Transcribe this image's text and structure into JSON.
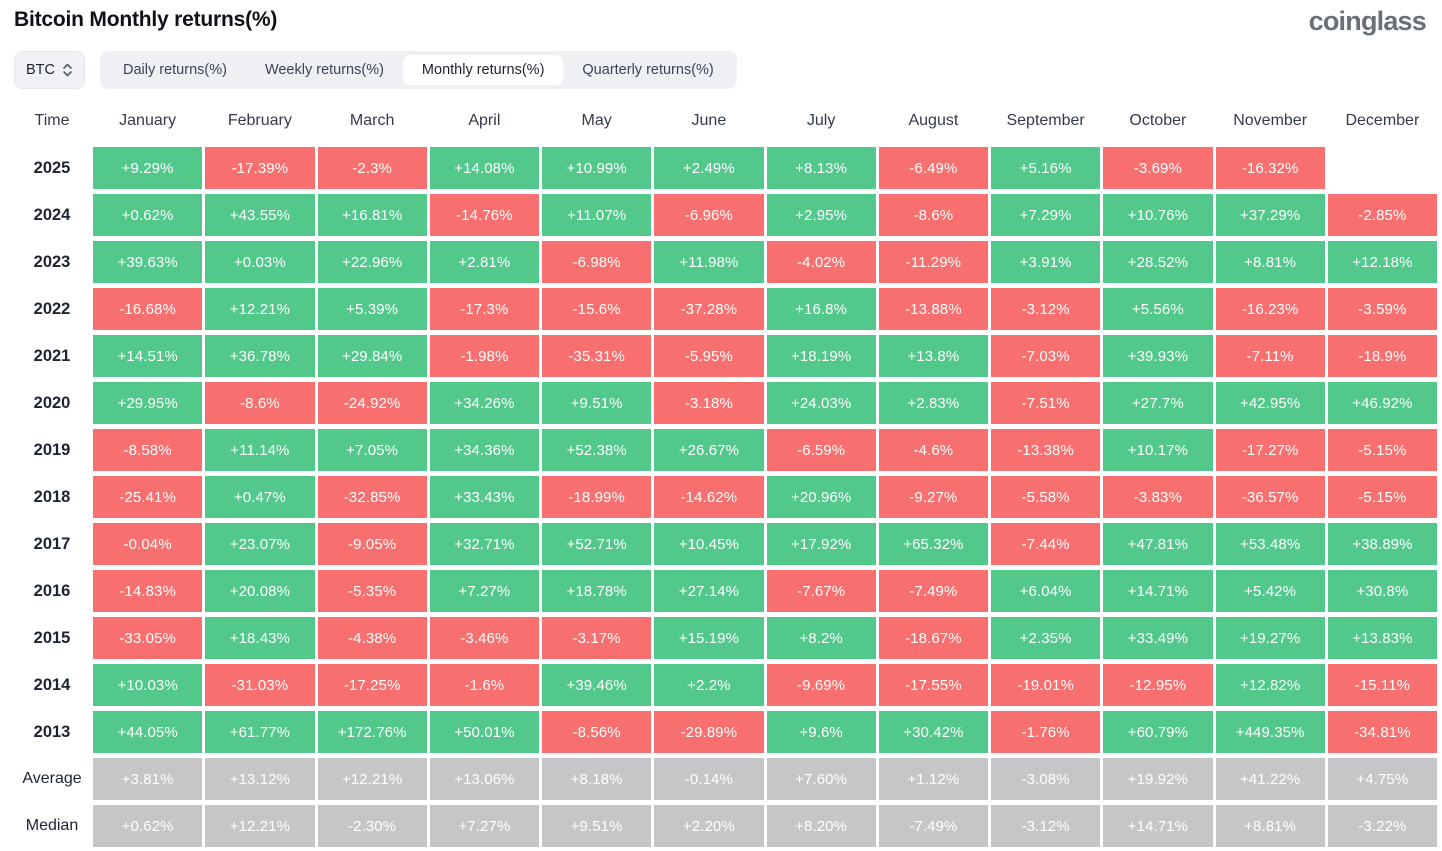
{
  "title": "Bitcoin Monthly returns(%)",
  "logo": "coinglass",
  "symbol_selector": {
    "label": "BTC"
  },
  "tabs": [
    {
      "label": "Daily returns(%)",
      "active": false
    },
    {
      "label": "Weekly returns(%)",
      "active": false
    },
    {
      "label": "Monthly returns(%)",
      "active": true
    },
    {
      "label": "Quarterly returns(%)",
      "active": false
    }
  ],
  "colors": {
    "positive": "#52c98b",
    "negative": "#f7706f",
    "summary": "#c6c6c8"
  },
  "table": {
    "time_header": "Time",
    "months": [
      "January",
      "February",
      "March",
      "April",
      "May",
      "June",
      "July",
      "August",
      "September",
      "October",
      "November",
      "December"
    ],
    "rows": [
      {
        "label": "2025",
        "type": "year",
        "values": [
          "+9.29%",
          "-17.39%",
          "-2.3%",
          "+14.08%",
          "+10.99%",
          "+2.49%",
          "+8.13%",
          "-6.49%",
          "+5.16%",
          "-3.69%",
          "-16.32%",
          null
        ]
      },
      {
        "label": "2024",
        "type": "year",
        "values": [
          "+0.62%",
          "+43.55%",
          "+16.81%",
          "-14.76%",
          "+11.07%",
          "-6.96%",
          "+2.95%",
          "-8.6%",
          "+7.29%",
          "+10.76%",
          "+37.29%",
          "-2.85%"
        ]
      },
      {
        "label": "2023",
        "type": "year",
        "values": [
          "+39.63%",
          "+0.03%",
          "+22.96%",
          "+2.81%",
          "-6.98%",
          "+11.98%",
          "-4.02%",
          "-11.29%",
          "+3.91%",
          "+28.52%",
          "+8.81%",
          "+12.18%"
        ]
      },
      {
        "label": "2022",
        "type": "year",
        "values": [
          "-16.68%",
          "+12.21%",
          "+5.39%",
          "-17.3%",
          "-15.6%",
          "-37.28%",
          "+16.8%",
          "-13.88%",
          "-3.12%",
          "+5.56%",
          "-16.23%",
          "-3.59%"
        ]
      },
      {
        "label": "2021",
        "type": "year",
        "values": [
          "+14.51%",
          "+36.78%",
          "+29.84%",
          "-1.98%",
          "-35.31%",
          "-5.95%",
          "+18.19%",
          "+13.8%",
          "-7.03%",
          "+39.93%",
          "-7.11%",
          "-18.9%"
        ]
      },
      {
        "label": "2020",
        "type": "year",
        "values": [
          "+29.95%",
          "-8.6%",
          "-24.92%",
          "+34.26%",
          "+9.51%",
          "-3.18%",
          "+24.03%",
          "+2.83%",
          "-7.51%",
          "+27.7%",
          "+42.95%",
          "+46.92%"
        ]
      },
      {
        "label": "2019",
        "type": "year",
        "values": [
          "-8.58%",
          "+11.14%",
          "+7.05%",
          "+34.36%",
          "+52.38%",
          "+26.67%",
          "-6.59%",
          "-4.6%",
          "-13.38%",
          "+10.17%",
          "-17.27%",
          "-5.15%"
        ]
      },
      {
        "label": "2018",
        "type": "year",
        "values": [
          "-25.41%",
          "+0.47%",
          "-32.85%",
          "+33.43%",
          "-18.99%",
          "-14.62%",
          "+20.96%",
          "-9.27%",
          "-5.58%",
          "-3.83%",
          "-36.57%",
          "-5.15%"
        ]
      },
      {
        "label": "2017",
        "type": "year",
        "values": [
          "-0.04%",
          "+23.07%",
          "-9.05%",
          "+32.71%",
          "+52.71%",
          "+10.45%",
          "+17.92%",
          "+65.32%",
          "-7.44%",
          "+47.81%",
          "+53.48%",
          "+38.89%"
        ]
      },
      {
        "label": "2016",
        "type": "year",
        "values": [
          "-14.83%",
          "+20.08%",
          "-5.35%",
          "+7.27%",
          "+18.78%",
          "+27.14%",
          "-7.67%",
          "-7.49%",
          "+6.04%",
          "+14.71%",
          "+5.42%",
          "+30.8%"
        ]
      },
      {
        "label": "2015",
        "type": "year",
        "values": [
          "-33.05%",
          "+18.43%",
          "-4.38%",
          "-3.46%",
          "-3.17%",
          "+15.19%",
          "+8.2%",
          "-18.67%",
          "+2.35%",
          "+33.49%",
          "+19.27%",
          "+13.83%"
        ]
      },
      {
        "label": "2014",
        "type": "year",
        "values": [
          "+10.03%",
          "-31.03%",
          "-17.25%",
          "-1.6%",
          "+39.46%",
          "+2.2%",
          "-9.69%",
          "-17.55%",
          "-19.01%",
          "-12.95%",
          "+12.82%",
          "-15.11%"
        ]
      },
      {
        "label": "2013",
        "type": "year",
        "values": [
          "+44.05%",
          "+61.77%",
          "+172.76%",
          "+50.01%",
          "-8.56%",
          "-29.89%",
          "+9.6%",
          "+30.42%",
          "-1.76%",
          "+60.79%",
          "+449.35%",
          "-34.81%"
        ]
      },
      {
        "label": "Average",
        "type": "summary",
        "values": [
          "+3.81%",
          "+13.12%",
          "+12.21%",
          "+13.06%",
          "+8.18%",
          "-0.14%",
          "+7.60%",
          "+1.12%",
          "-3.08%",
          "+19.92%",
          "+41.22%",
          "+4.75%"
        ]
      },
      {
        "label": "Median",
        "type": "summary",
        "values": [
          "+0.62%",
          "+12.21%",
          "-2.30%",
          "+7.27%",
          "+9.51%",
          "+2.20%",
          "+8.20%",
          "-7.49%",
          "-3.12%",
          "+14.71%",
          "+8.81%",
          "-3.22%"
        ]
      }
    ]
  }
}
